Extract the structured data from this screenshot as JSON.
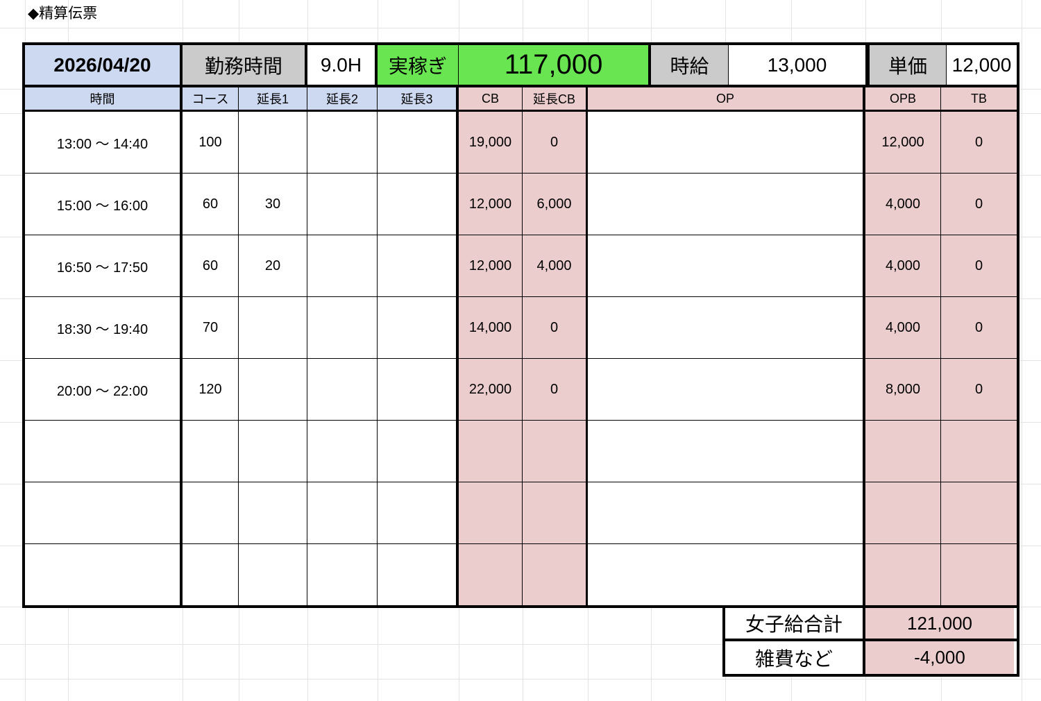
{
  "title": "◆精算伝票",
  "summary_bar": {
    "date": "2026/04/20",
    "work_time_label": "勤務時間",
    "work_time_value": "9.0H",
    "earnings_label": "実稼ぎ",
    "earnings_value": "117,000",
    "hourly_wage_label": "時給",
    "hourly_wage_value": "13,000",
    "unit_price_label": "単価",
    "unit_price_value": "12,000"
  },
  "table": {
    "columns": [
      "時間",
      "コース",
      "延長1",
      "延長2",
      "延長3",
      "CB",
      "延長CB",
      "OP",
      "OPB",
      "TB"
    ],
    "rows": [
      {
        "time": "13:00 ～ 14:40",
        "course": "100",
        "ext1": "",
        "ext2": "",
        "ext3": "",
        "cb": "19,000",
        "ext_cb": "0",
        "op": "",
        "opb": "12,000",
        "tb": "0"
      },
      {
        "time": "15:00 ～ 16:00",
        "course": "60",
        "ext1": "30",
        "ext2": "",
        "ext3": "",
        "cb": "12,000",
        "ext_cb": "6,000",
        "op": "",
        "opb": "4,000",
        "tb": "0"
      },
      {
        "time": "16:50 ～ 17:50",
        "course": "60",
        "ext1": "20",
        "ext2": "",
        "ext3": "",
        "cb": "12,000",
        "ext_cb": "4,000",
        "op": "",
        "opb": "4,000",
        "tb": "0"
      },
      {
        "time": "18:30 ～ 19:40",
        "course": "70",
        "ext1": "",
        "ext2": "",
        "ext3": "",
        "cb": "14,000",
        "ext_cb": "0",
        "op": "",
        "opb": "4,000",
        "tb": "0"
      },
      {
        "time": "20:00 ～ 22:00",
        "course": "120",
        "ext1": "",
        "ext2": "",
        "ext3": "",
        "cb": "22,000",
        "ext_cb": "0",
        "op": "",
        "opb": "8,000",
        "tb": "0"
      },
      {
        "time": "",
        "course": "",
        "ext1": "",
        "ext2": "",
        "ext3": "",
        "cb": "",
        "ext_cb": "",
        "op": "",
        "opb": "",
        "tb": ""
      },
      {
        "time": "",
        "course": "",
        "ext1": "",
        "ext2": "",
        "ext3": "",
        "cb": "",
        "ext_cb": "",
        "op": "",
        "opb": "",
        "tb": ""
      },
      {
        "time": "",
        "course": "",
        "ext1": "",
        "ext2": "",
        "ext3": "",
        "cb": "",
        "ext_cb": "",
        "op": "",
        "opb": "",
        "tb": ""
      }
    ]
  },
  "totals": {
    "total_label": "女子給合計",
    "total_value": "121,000",
    "expense_label": "雑費など",
    "expense_value": "-4,000"
  },
  "colors": {
    "header_blue": "#cdd9f0",
    "header_gray": "#cbcbcb",
    "highlight_green": "#69e551",
    "accent_pink": "#eccdcd",
    "border_black": "#000000",
    "gridline_gray": "#e3e3e3"
  }
}
